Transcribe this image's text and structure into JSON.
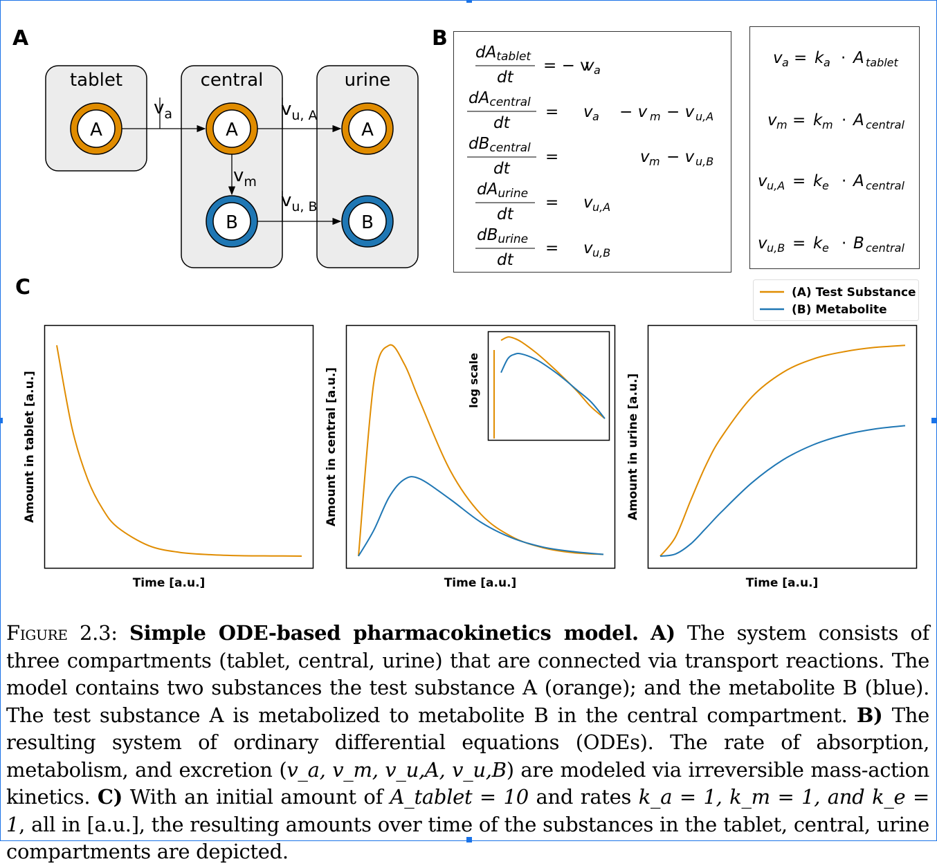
{
  "panel_labels": {
    "a": "A",
    "b": "B",
    "c": "C"
  },
  "diagram": {
    "compartments": [
      "tablet",
      "central",
      "urine"
    ],
    "species": {
      "a": "A",
      "b": "B"
    },
    "rates": {
      "va_main": "v",
      "va_sub": "a",
      "vm_main": "v",
      "vm_sub": "m",
      "vua_main": "v",
      "vua_sub": "u, A",
      "vub_main": "v",
      "vub_sub": "u, B"
    },
    "colors": {
      "substance_a": "#e08c00",
      "substance_b": "#1f77b4",
      "compartment_fill": "#ececec"
    }
  },
  "odes": {
    "rows": [
      {
        "num_var": "dA",
        "num_sub": "tablet",
        "den": "dt",
        "rhs": [
          "= − v",
          "a",
          "",
          "",
          "",
          ""
        ]
      },
      {
        "num_var": "dA",
        "num_sub": "central",
        "den": "dt",
        "rhs": [
          "=",
          "v",
          "a",
          "− v",
          "m",
          "− v",
          "u,A"
        ]
      },
      {
        "num_var": "dB",
        "num_sub": "central",
        "den": "dt",
        "rhs": [
          "=",
          "v",
          "m",
          "− v",
          "u,B"
        ]
      },
      {
        "num_var": "dA",
        "num_sub": "urine",
        "den": "dt",
        "rhs": [
          "=",
          "v",
          "u,A"
        ]
      },
      {
        "num_var": "dB",
        "num_sub": "urine",
        "den": "dt",
        "rhs": [
          "=",
          "v",
          "u,B"
        ]
      }
    ]
  },
  "rate_laws": [
    {
      "lhs": "v",
      "lhs_sub": "a",
      "k": "k",
      "k_sub": "a",
      "var": "A",
      "var_sub": "tablet"
    },
    {
      "lhs": "v",
      "lhs_sub": "m",
      "k": "k",
      "k_sub": "m",
      "var": "A",
      "var_sub": "central"
    },
    {
      "lhs": "v",
      "lhs_sub": "u,A",
      "k": "k",
      "k_sub": "e",
      "var": "A",
      "var_sub": "central"
    },
    {
      "lhs": "v",
      "lhs_sub": "u,B",
      "k": "k",
      "k_sub": "e",
      "var": "B",
      "var_sub": "central"
    }
  ],
  "legend": {
    "a": "(A) Test Substance",
    "b": "(B) Metabolite"
  },
  "chart_data": [
    {
      "type": "line",
      "xlabel": "Time [a.u.]",
      "ylabel": "Amount in tablet [a.u.]",
      "x": [
        0,
        0.5,
        1,
        1.5,
        2,
        3,
        4,
        5,
        6,
        7,
        8
      ],
      "series": [
        {
          "name": "(A) Test Substance",
          "values": [
            10,
            6.07,
            3.68,
            2.23,
            1.35,
            0.5,
            0.18,
            0.07,
            0.02,
            0.01,
            0.0
          ]
        }
      ]
    },
    {
      "type": "line",
      "xlabel": "Time [a.u.]",
      "ylabel": "Amount in central [a.u.]",
      "inset_label": "log scale",
      "x": [
        0,
        0.5,
        1,
        1.5,
        2,
        3,
        4,
        5,
        6,
        7,
        8
      ],
      "series": [
        {
          "name": "(A) Test Substance",
          "values": [
            0,
            3.03,
            3.68,
            3.35,
            2.71,
            1.49,
            0.73,
            0.34,
            0.15,
            0.06,
            0.03
          ]
        },
        {
          "name": "(B) Metabolite",
          "values": [
            0,
            0.45,
            1.03,
            1.34,
            1.35,
            0.99,
            0.59,
            0.32,
            0.16,
            0.08,
            0.03
          ]
        }
      ]
    },
    {
      "type": "line",
      "xlabel": "Time [a.u.]",
      "ylabel": "Amount in urine [a.u.]",
      "x": [
        0,
        0.5,
        1,
        1.5,
        2,
        3,
        4,
        5,
        6,
        7,
        8
      ],
      "series": [
        {
          "name": "(A) Test Substance",
          "values": [
            0,
            0.45,
            1.32,
            2.15,
            2.8,
            3.75,
            4.32,
            4.64,
            4.81,
            4.91,
            4.96
          ]
        },
        {
          "name": "(B) Metabolite",
          "values": [
            0,
            0.05,
            0.29,
            0.66,
            1.04,
            1.73,
            2.26,
            2.62,
            2.85,
            2.99,
            3.07
          ]
        }
      ]
    }
  ],
  "caption": {
    "fig_label": "Figure 2.3:",
    "title": "Simple ODE-based pharmacokinetics model.",
    "a_label": "A)",
    "a_text": "The system consists of three compartments (tablet, central, urine) that are connected via transport reactions. The model contains two substances the test substance A (orange); and the metabolite B (blue). The test substance A is metabolized to metabolite B in the central compartment.",
    "b_label": "B)",
    "b_text_1": "The resulting system of ordinary differential equations (ODEs). The rate of absorption, metabolism, and excretion (",
    "b_vars": "v_a, v_m, v_u,A, v_u,B",
    "b_text_2": ") are modeled via irreversible mass-action kinetics.",
    "c_label": "C)",
    "c_text_1": "With an initial amount of",
    "c_init": "A_tablet = 10",
    "c_text_2": "and rates",
    "c_rates": "k_a = 1, k_m = 1, and k_e = 1",
    "c_text_3": ", all in [a.u.], the resulting amounts over time of the substances in the tablet, central, urine compartments are depicted."
  }
}
